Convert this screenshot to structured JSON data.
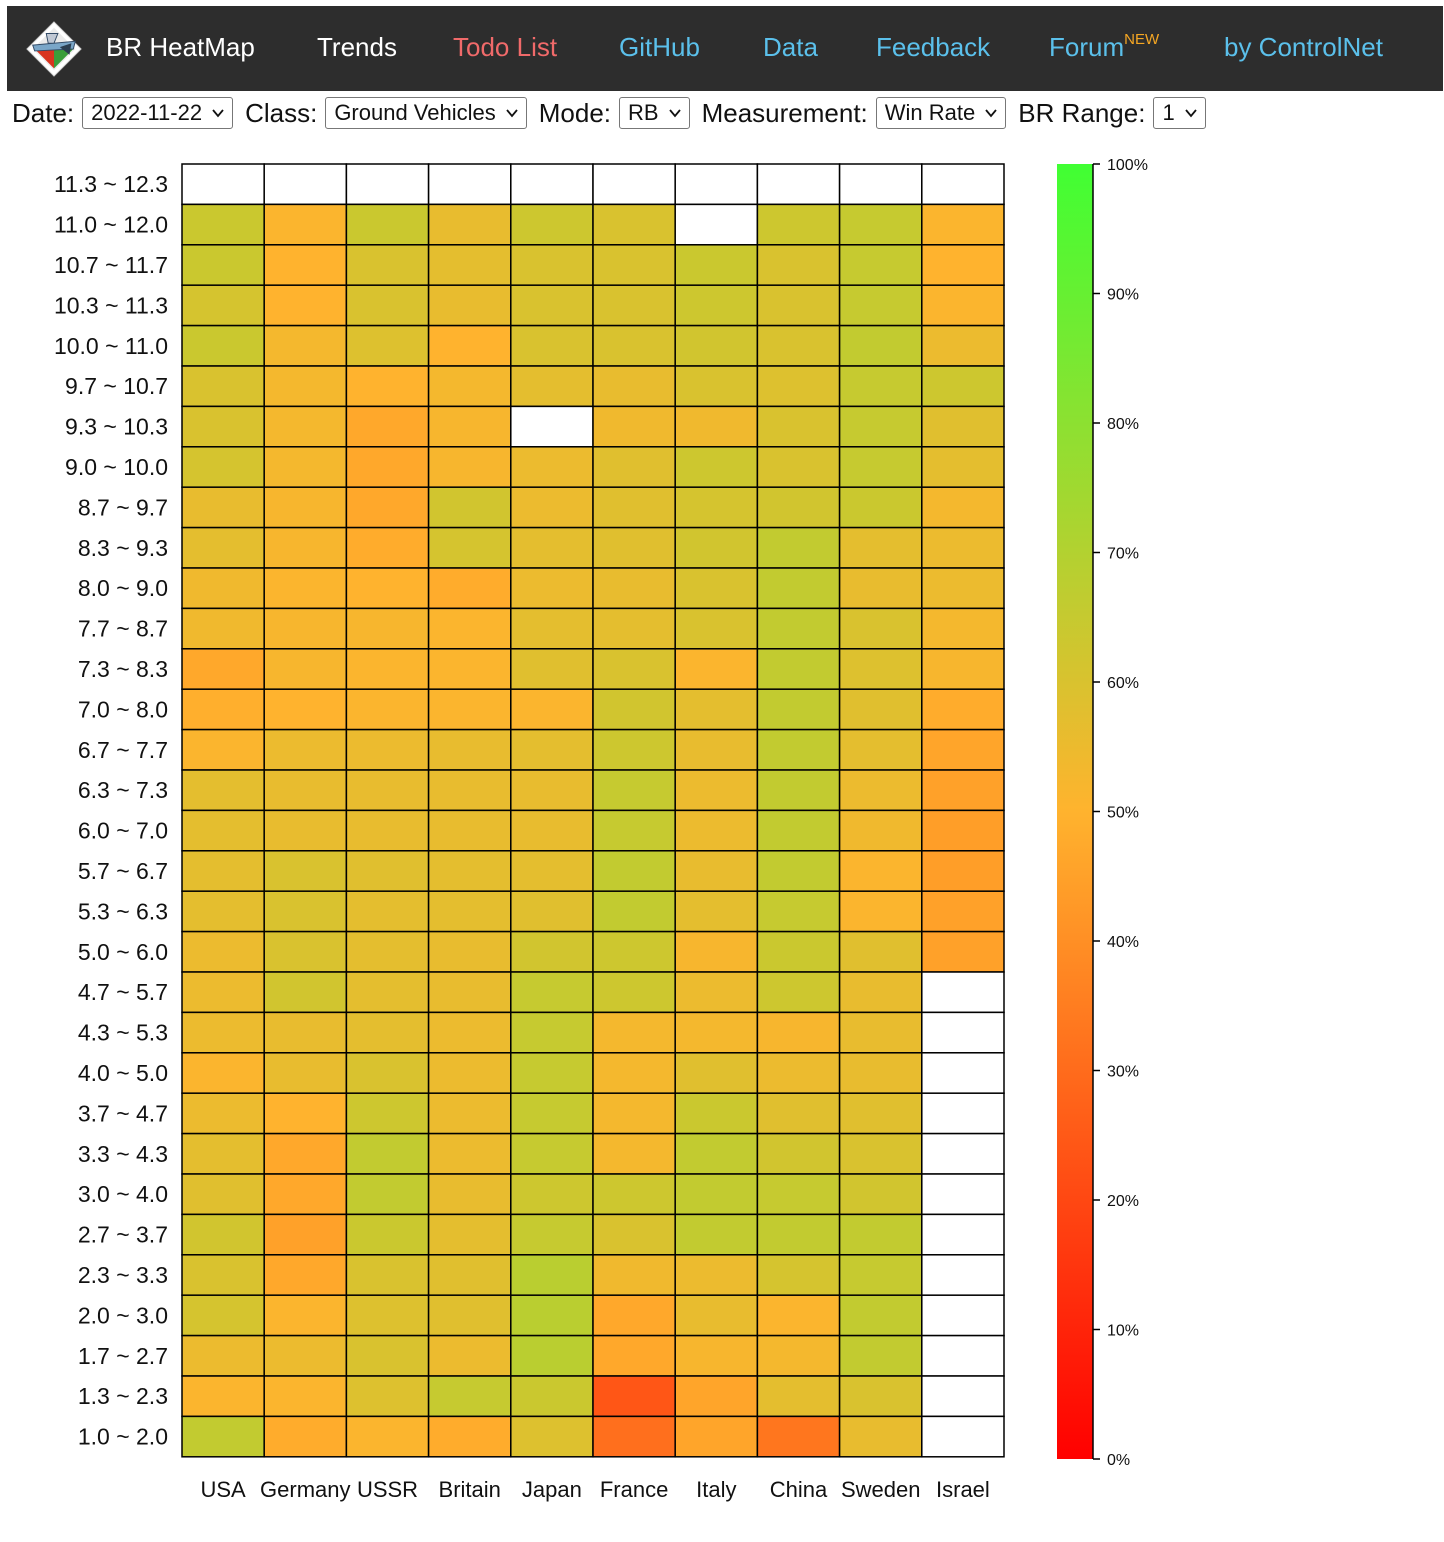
{
  "nav": {
    "brand": "BR HeatMap",
    "items": [
      {
        "label": "Trends",
        "sup": "",
        "color": "#ffffff"
      },
      {
        "label": "Todo List",
        "sup": "",
        "color": "#f06a6a"
      },
      {
        "label": "GitHub",
        "sup": "",
        "color": "#5bc0eb"
      },
      {
        "label": "Data",
        "sup": "",
        "color": "#5bc0eb"
      },
      {
        "label": "Feedback",
        "sup": "",
        "color": "#5bc0eb"
      },
      {
        "label": "Forum",
        "sup": "NEW",
        "color": "#5bc0eb",
        "sup_color": "#f5a623"
      },
      {
        "label": "by ControlNet",
        "sup": "",
        "color": "#5bc0eb"
      }
    ]
  },
  "controls": {
    "date": {
      "label": "Date:",
      "value": "2022-11-22"
    },
    "class": {
      "label": "Class:",
      "value": "Ground Vehicles"
    },
    "mode": {
      "label": "Mode:",
      "value": "RB"
    },
    "measurement": {
      "label": "Measurement:",
      "value": "Win Rate"
    },
    "br_range": {
      "label": "BR Range:",
      "value": "1"
    }
  },
  "chart_data": {
    "type": "heatmap",
    "title": "",
    "xlabel": "",
    "ylabel": "",
    "nations": [
      "USA",
      "Germany",
      "USSR",
      "Britain",
      "Japan",
      "France",
      "Italy",
      "China",
      "Sweden",
      "Israel"
    ],
    "br_ranges": [
      "11.3 ~ 12.3",
      "11.0 ~ 12.0",
      "10.7 ~ 11.7",
      "10.3 ~ 11.3",
      "10.0 ~ 11.0",
      "9.7 ~ 10.7",
      "9.3 ~ 10.3",
      "9.0 ~ 10.0",
      "8.7 ~ 9.7",
      "8.3 ~ 9.3",
      "8.0 ~ 9.0",
      "7.7 ~ 8.7",
      "7.3 ~ 8.3",
      "7.0 ~ 8.0",
      "6.7 ~ 7.7",
      "6.3 ~ 7.3",
      "6.0 ~ 7.0",
      "5.7 ~ 6.7",
      "5.3 ~ 6.3",
      "5.0 ~ 6.0",
      "4.7 ~ 5.7",
      "4.3 ~ 5.3",
      "4.0 ~ 5.0",
      "3.7 ~ 4.7",
      "3.3 ~ 4.3",
      "3.0 ~ 4.0",
      "2.7 ~ 3.7",
      "2.3 ~ 3.3",
      "2.0 ~ 3.0",
      "1.7 ~ 2.7",
      "1.3 ~ 2.3",
      "1.0 ~ 2.0"
    ],
    "values_note_nulls": "null = no data (white cell)",
    "win_rate_pct": [
      [
        null,
        null,
        null,
        null,
        null,
        null,
        null,
        null,
        null,
        null
      ],
      [
        64,
        51,
        64,
        56,
        63,
        60,
        null,
        63,
        65,
        51
      ],
      [
        64,
        50,
        60,
        57,
        60,
        60,
        64,
        60,
        65,
        50
      ],
      [
        61,
        50,
        60,
        56,
        60,
        60,
        63,
        60,
        65,
        51
      ],
      [
        64,
        53,
        59,
        50,
        60,
        60,
        62,
        60,
        66,
        55
      ],
      [
        60,
        53,
        50,
        53,
        57,
        56,
        60,
        59,
        65,
        63
      ],
      [
        60,
        53,
        47,
        52,
        null,
        54,
        54,
        60,
        65,
        58
      ],
      [
        61,
        53,
        47,
        52,
        55,
        58,
        63,
        60,
        65,
        57
      ],
      [
        56,
        52,
        47,
        62,
        55,
        58,
        61,
        62,
        64,
        53
      ],
      [
        57,
        52,
        48,
        61,
        57,
        58,
        62,
        66,
        57,
        55
      ],
      [
        54,
        51,
        50,
        48,
        55,
        56,
        60,
        66,
        56,
        55
      ],
      [
        54,
        52,
        52,
        51,
        57,
        57,
        60,
        66,
        60,
        53
      ],
      [
        47,
        52,
        51,
        51,
        58,
        60,
        51,
        66,
        59,
        52
      ],
      [
        49,
        50,
        51,
        51,
        51,
        62,
        57,
        66,
        58,
        48
      ],
      [
        51,
        55,
        55,
        56,
        57,
        63,
        56,
        66,
        57,
        46
      ],
      [
        57,
        56,
        56,
        56,
        56,
        65,
        55,
        66,
        55,
        45
      ],
      [
        57,
        56,
        56,
        56,
        56,
        65,
        55,
        66,
        54,
        44
      ],
      [
        57,
        60,
        58,
        57,
        57,
        66,
        56,
        66,
        51,
        44
      ],
      [
        57,
        60,
        57,
        57,
        58,
        66,
        57,
        65,
        51,
        45
      ],
      [
        55,
        60,
        57,
        56,
        62,
        63,
        52,
        64,
        58,
        45
      ],
      [
        55,
        62,
        57,
        56,
        65,
        63,
        55,
        63,
        56,
        null
      ],
      [
        55,
        56,
        57,
        55,
        65,
        53,
        53,
        52,
        56,
        null
      ],
      [
        51,
        56,
        60,
        55,
        65,
        53,
        58,
        55,
        56,
        null
      ],
      [
        55,
        50,
        63,
        55,
        65,
        53,
        64,
        58,
        58,
        null
      ],
      [
        57,
        47,
        66,
        55,
        65,
        53,
        66,
        62,
        60,
        null
      ],
      [
        58,
        47,
        66,
        56,
        63,
        63,
        66,
        65,
        62,
        null
      ],
      [
        62,
        45,
        64,
        57,
        65,
        60,
        66,
        66,
        66,
        null
      ],
      [
        60,
        47,
        60,
        58,
        68,
        54,
        55,
        61,
        65,
        null
      ],
      [
        61,
        51,
        59,
        58,
        68,
        47,
        56,
        51,
        66,
        null
      ],
      [
        55,
        55,
        60,
        55,
        68,
        47,
        52,
        53,
        66,
        null
      ],
      [
        51,
        51,
        59,
        65,
        64,
        24,
        46,
        57,
        60,
        null
      ],
      [
        66,
        48,
        51,
        48,
        59,
        31,
        46,
        33,
        56,
        null
      ]
    ],
    "colorbar": {
      "min": 0,
      "max": 100,
      "ticks": [
        "100%",
        "90%",
        "80%",
        "70%",
        "60%",
        "50%",
        "40%",
        "30%",
        "20%",
        "10%",
        "0%"
      ],
      "colors": [
        "#ff0000",
        "#ffb32e",
        "#40ff33"
      ]
    }
  }
}
